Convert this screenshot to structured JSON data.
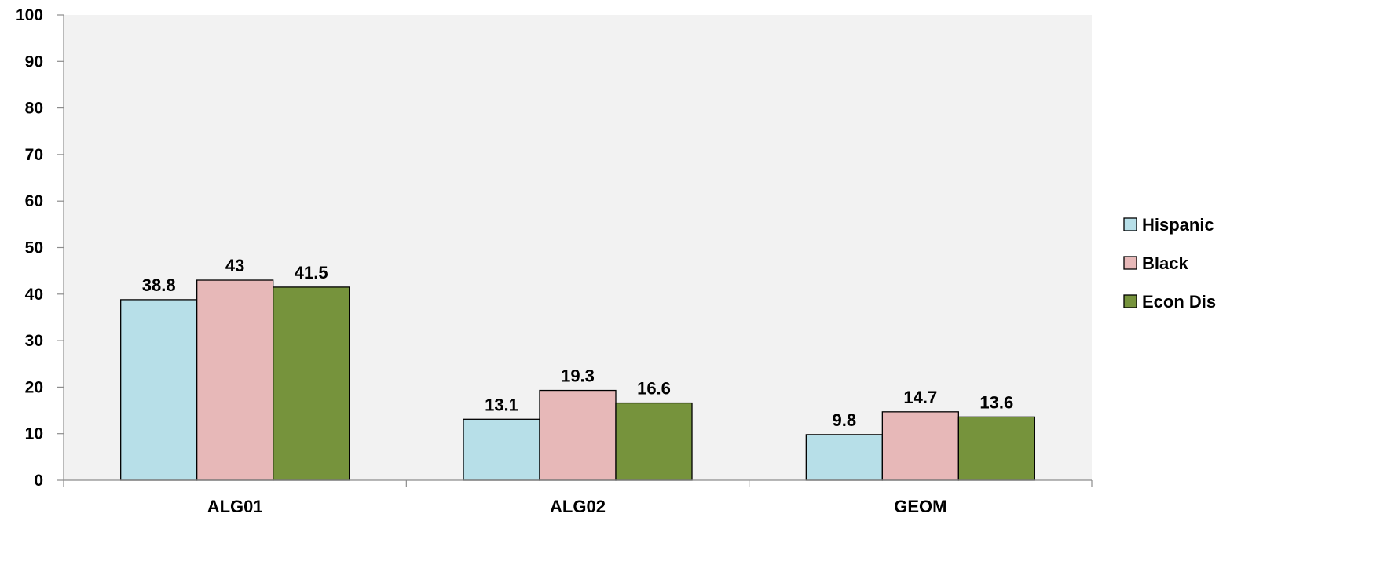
{
  "chart_data": {
    "type": "bar",
    "title": "",
    "xlabel": "",
    "ylabel": "",
    "ylim": [
      0,
      100
    ],
    "yticks": [
      0,
      10,
      20,
      30,
      40,
      50,
      60,
      70,
      80,
      90,
      100
    ],
    "categories": [
      "ALG01",
      "ALG02",
      "GEOM"
    ],
    "series": [
      {
        "name": "Hispanic",
        "values": [
          38.8,
          13.1,
          9.8
        ],
        "color": "#b7dfe8"
      },
      {
        "name": "Black",
        "values": [
          43,
          19.3,
          14.7
        ],
        "color": "#e7b8b8"
      },
      {
        "name": "Econ Dis",
        "values": [
          41.5,
          16.6,
          13.6
        ],
        "color": "#76933c"
      }
    ],
    "grid": false,
    "legend_position": "right",
    "plot_background": "#f2f2f2",
    "data_labels": true
  }
}
